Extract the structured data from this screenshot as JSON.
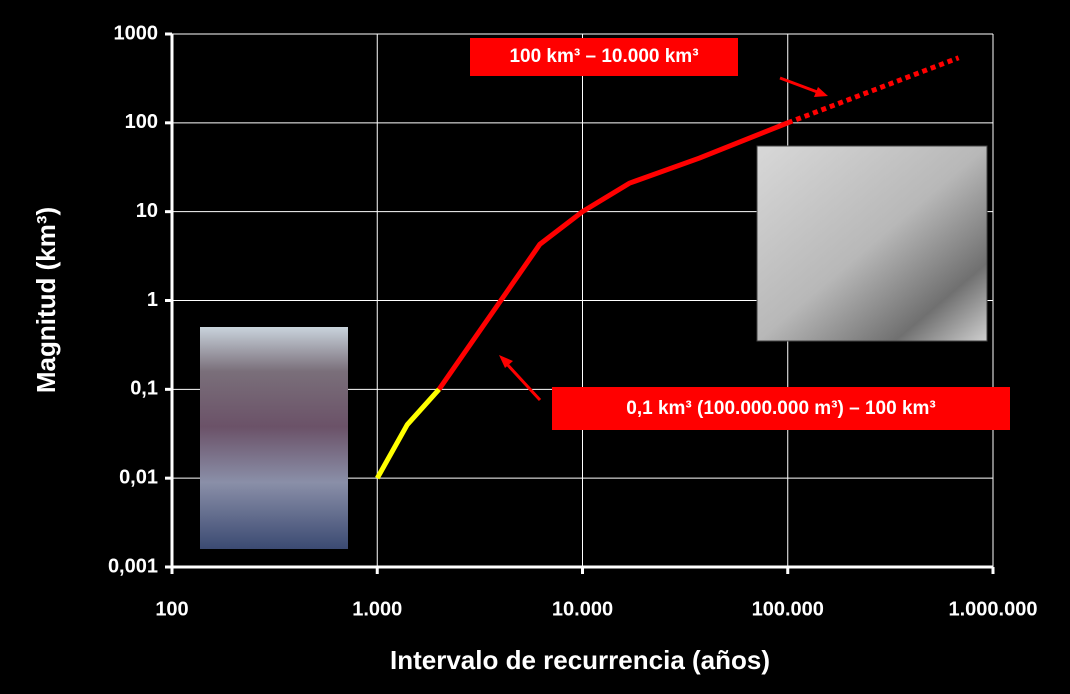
{
  "chart_data": {
    "type": "line",
    "xlabel": "Intervalo de recurrencia (años)",
    "ylabel": "Magnitud (km³)",
    "xscale": "log",
    "yscale": "log",
    "grid": true,
    "xlim": [
      100,
      1000000
    ],
    "ylim": [
      0.001,
      1000
    ],
    "xticks": [
      100,
      {
        "value": 1000,
        "label": "1.000"
      },
      {
        "value": 10000,
        "label": "10.000"
      },
      {
        "value": 100000,
        "label": "100.000"
      },
      {
        "value": 1000000,
        "label": "1.000.000"
      }
    ],
    "yticks": [
      {
        "value": 0.001,
        "label": "0,001"
      },
      {
        "value": 0.01,
        "label": "0,01"
      },
      {
        "value": 0.1,
        "label": "0,1"
      },
      1,
      10,
      100,
      1000
    ],
    "series": [
      {
        "color": "#ffff00",
        "dashed": false,
        "x": [
          1000,
          1400,
          2000
        ],
        "values": [
          0.01,
          0.04,
          0.1
        ]
      },
      {
        "color": "#ff0000",
        "dashed": false,
        "x": [
          2000,
          4000,
          6200,
          10000,
          17000,
          37000,
          100000
        ],
        "values": [
          0.1,
          1,
          4.3,
          10,
          21,
          40,
          100
        ]
      },
      {
        "color": "#ff0000",
        "dashed": true,
        "x": [
          100000,
          680000
        ],
        "values": [
          100,
          540
        ]
      }
    ],
    "annotations": [
      "100 km³ – 10.000 km³",
      "0,1 km³ (100.000.000 m³) – 100 km³"
    ]
  }
}
